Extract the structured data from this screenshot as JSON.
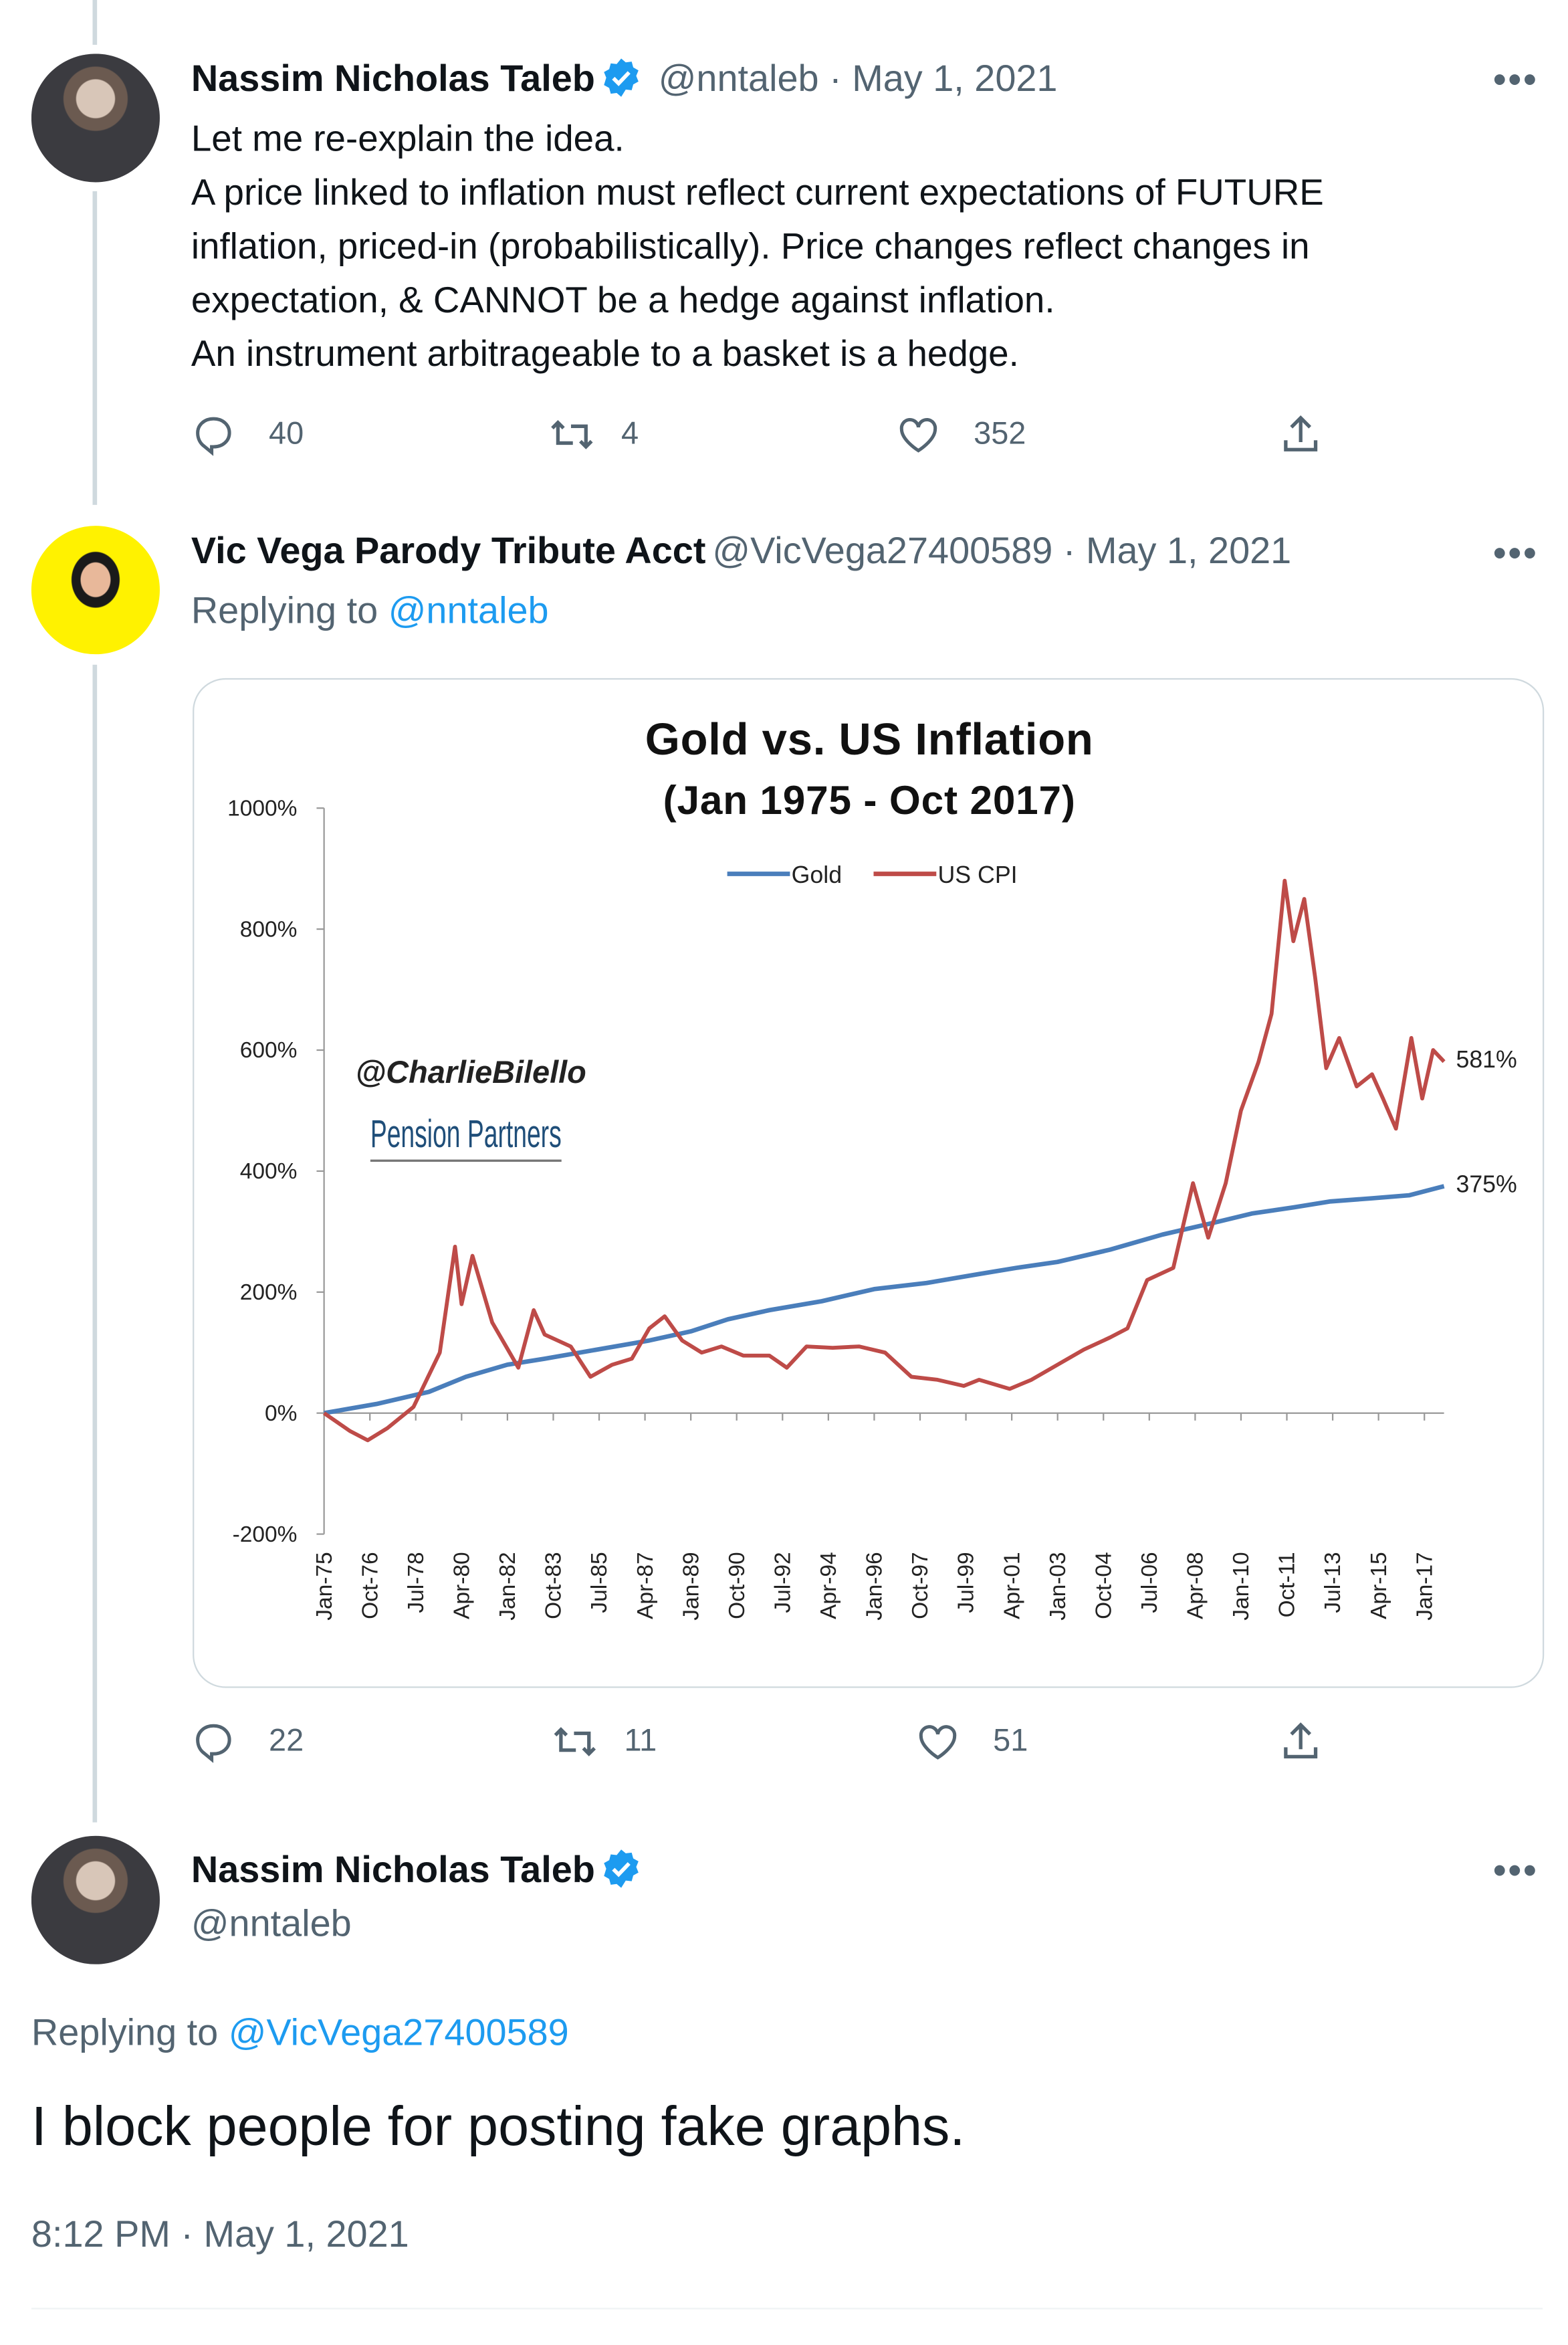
{
  "tweets": [
    {
      "author": "Nassim Nicholas Taleb",
      "verified": true,
      "handle": "@nntaleb",
      "date": "May 1, 2021",
      "meta": "@nntaleb · May 1, 2021",
      "lines": [
        "Let me re-explain the idea.",
        "A price linked to inflation must reflect current expectations of FUTURE",
        "inflation, priced-in (probabilistically). Price changes reflect changes in",
        "expectation, & CANNOT be a hedge against inflation.",
        "An instrument arbitrageable to a basket is a hedge."
      ],
      "replies": "40",
      "retweets": "4",
      "likes": "352"
    },
    {
      "author": "Vic Vega Parody Tribute Acct",
      "verified": false,
      "handle": "@VicVega27400589",
      "meta": "@VicVega27400589 · May 1, 2021",
      "replying_label": "Replying to",
      "replying_to": "@nntaleb",
      "replies": "22",
      "retweets": "11",
      "likes": "51"
    },
    {
      "author": "Nassim Nicholas Taleb",
      "verified": true,
      "handle": "@nntaleb",
      "replying_label": "Replying to",
      "replying_to": "@VicVega27400589",
      "text": "I block people for posting fake graphs.",
      "timestamp": "8:12 PM · May 1, 2021"
    }
  ],
  "icons": {
    "reply": "speech-bubble",
    "retweet": "retweet-arrows",
    "like": "heart",
    "share": "upload-arrow",
    "more": "ellipsis",
    "verified": "blue-check-badge"
  },
  "colors": {
    "accent": "#1d9bf0",
    "muted": "#536471",
    "gold_line": "#4a7ebb",
    "cpi_line": "#be4b48"
  },
  "chart_data": {
    "type": "line",
    "title": "Gold vs. US Inflation",
    "subtitle": "(Jan 1975 - Oct 2017)",
    "watermark": "@CharlieBilello",
    "logo": "Pension Partners",
    "ylim": [
      -200,
      1000
    ],
    "yticks": [
      "1000%",
      "800%",
      "600%",
      "400%",
      "200%",
      "0%",
      "-200%"
    ],
    "ytick_values": [
      1000,
      800,
      600,
      400,
      200,
      0,
      -200
    ],
    "xlim": [
      "1975-01",
      "2017-10"
    ],
    "xticks": [
      "Jan-75",
      "Oct-76",
      "Jul-78",
      "Apr-80",
      "Jan-82",
      "Oct-83",
      "Jul-85",
      "Apr-87",
      "Jan-89",
      "Oct-90",
      "Jul-92",
      "Apr-94",
      "Jan-96",
      "Oct-97",
      "Jul-99",
      "Apr-01",
      "Jan-03",
      "Oct-04",
      "Jul-06",
      "Apr-08",
      "Jan-10",
      "Oct-11",
      "Jul-13",
      "Apr-15",
      "Jan-17"
    ],
    "legend": "top-center",
    "grid": false,
    "series": [
      {
        "name": "Gold",
        "color": "#4a7ebb",
        "end_label": "375%",
        "points": [
          [
            "1975-01",
            0
          ],
          [
            "1977-01",
            15
          ],
          [
            "1979-01",
            35
          ],
          [
            "1980-06",
            60
          ],
          [
            "1982-01",
            80
          ],
          [
            "1983-06",
            90
          ],
          [
            "1985-06",
            105
          ],
          [
            "1987-06",
            120
          ],
          [
            "1989-01",
            135
          ],
          [
            "1990-06",
            155
          ],
          [
            "1992-01",
            170
          ],
          [
            "1994-01",
            185
          ],
          [
            "1996-01",
            205
          ],
          [
            "1998-01",
            215
          ],
          [
            "2000-01",
            230
          ],
          [
            "2001-06",
            240
          ],
          [
            "2003-01",
            250
          ],
          [
            "2005-01",
            270
          ],
          [
            "2007-01",
            295
          ],
          [
            "2009-01",
            315
          ],
          [
            "2010-06",
            330
          ],
          [
            "2012-01",
            340
          ],
          [
            "2013-06",
            350
          ],
          [
            "2015-01",
            355
          ],
          [
            "2016-06",
            360
          ],
          [
            "2017-10",
            375
          ]
        ]
      },
      {
        "name": "US CPI",
        "color": "#be4b48",
        "end_label": "581%",
        "points": [
          [
            "1975-01",
            0
          ],
          [
            "1976-01",
            -30
          ],
          [
            "1976-09",
            -45
          ],
          [
            "1977-06",
            -25
          ],
          [
            "1978-06",
            10
          ],
          [
            "1979-06",
            100
          ],
          [
            "1980-01",
            275
          ],
          [
            "1980-04",
            180
          ],
          [
            "1980-09",
            260
          ],
          [
            "1981-06",
            150
          ],
          [
            "1982-06",
            75
          ],
          [
            "1983-01",
            170
          ],
          [
            "1983-06",
            130
          ],
          [
            "1984-06",
            110
          ],
          [
            "1985-03",
            60
          ],
          [
            "1986-01",
            80
          ],
          [
            "1986-10",
            90
          ],
          [
            "1987-06",
            140
          ],
          [
            "1988-01",
            160
          ],
          [
            "1988-09",
            120
          ],
          [
            "1989-06",
            100
          ],
          [
            "1990-03",
            110
          ],
          [
            "1991-01",
            95
          ],
          [
            "1992-01",
            95
          ],
          [
            "1992-09",
            75
          ],
          [
            "1993-06",
            110
          ],
          [
            "1994-06",
            108
          ],
          [
            "1995-06",
            110
          ],
          [
            "1996-06",
            100
          ],
          [
            "1997-06",
            60
          ],
          [
            "1998-06",
            55
          ],
          [
            "1999-06",
            45
          ],
          [
            "2000-01",
            55
          ],
          [
            "2001-03",
            40
          ],
          [
            "2002-01",
            55
          ],
          [
            "2003-01",
            80
          ],
          [
            "2004-01",
            105
          ],
          [
            "2005-01",
            125
          ],
          [
            "2005-09",
            140
          ],
          [
            "2006-06",
            220
          ],
          [
            "2007-06",
            240
          ],
          [
            "2008-03",
            380
          ],
          [
            "2008-10",
            290
          ],
          [
            "2009-06",
            380
          ],
          [
            "2010-01",
            500
          ],
          [
            "2010-09",
            580
          ],
          [
            "2011-03",
            660
          ],
          [
            "2011-09",
            880
          ],
          [
            "2012-01",
            780
          ],
          [
            "2012-06",
            850
          ],
          [
            "2012-11",
            720
          ],
          [
            "2013-04",
            570
          ],
          [
            "2013-10",
            620
          ],
          [
            "2014-06",
            540
          ],
          [
            "2015-01",
            560
          ],
          [
            "2015-06",
            520
          ],
          [
            "2015-12",
            470
          ],
          [
            "2016-07",
            620
          ],
          [
            "2016-12",
            520
          ],
          [
            "2017-05",
            600
          ],
          [
            "2017-10",
            581
          ]
        ]
      }
    ]
  }
}
